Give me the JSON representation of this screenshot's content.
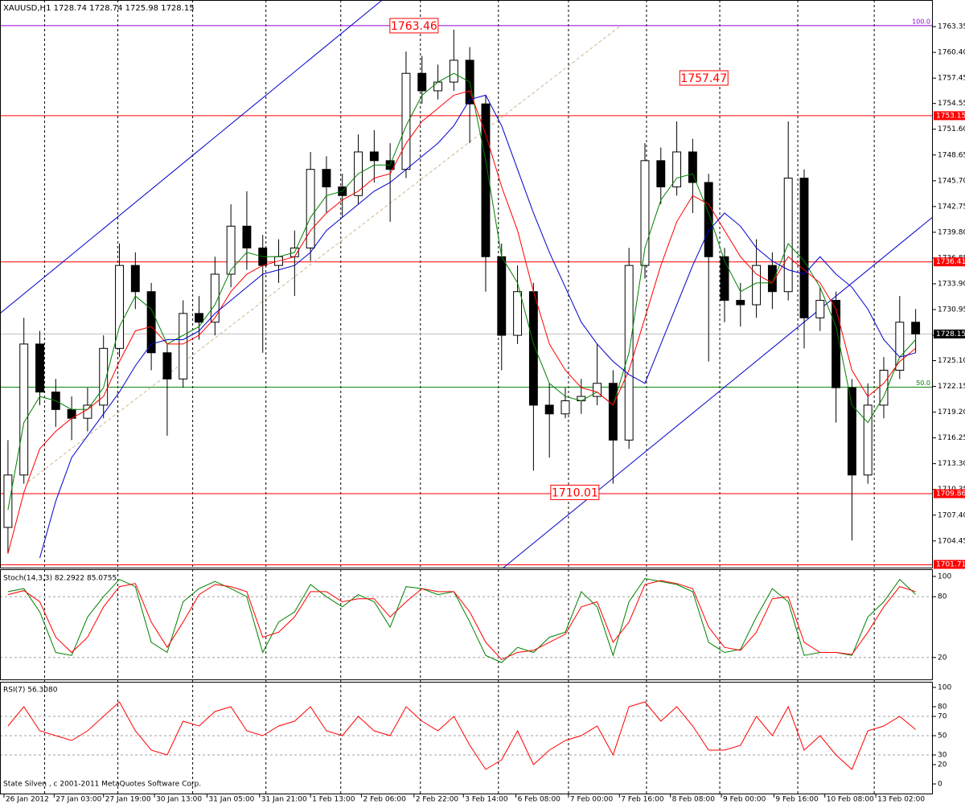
{
  "chart_data": [
    {
      "type": "candlestick",
      "title": "XAUUSD,H1  1728.74 1728.74 1725.98 1728.15",
      "footer": "State Silven , c 2001-2011 MetaQuotes Software Corp.",
      "open": [
        1706,
        1712,
        1727,
        1721.5,
        1719.5,
        1718.5,
        1720,
        1726.5,
        1736,
        1733,
        1726,
        1723,
        1730.5,
        1729.5,
        1735,
        1740.5,
        1738,
        1736,
        1737,
        1738,
        1747,
        1745,
        1744,
        1749,
        1748,
        1747,
        1758,
        1756,
        1757,
        1759.5,
        1754.5,
        1737,
        1728,
        1733,
        1720,
        1719,
        1720.5,
        1721,
        1722.5,
        1716,
        1736,
        1748,
        1745,
        1749,
        1745.5,
        1737,
        1732,
        1731.5,
        1736,
        1733,
        1746,
        1730,
        1732,
        1722,
        1712,
        1720,
        1724,
        1729.5
      ],
      "high": [
        1716,
        1730,
        1728.5,
        1723,
        1721,
        1722,
        1728,
        1738.5,
        1737.5,
        1734,
        1727,
        1732,
        1732.5,
        1737,
        1743,
        1744.5,
        1739.5,
        1739,
        1740,
        1749,
        1748.5,
        1746.5,
        1751,
        1751.5,
        1750,
        1760.5,
        1760,
        1759,
        1763,
        1761,
        1755.5,
        1738.5,
        1736,
        1734,
        1722.5,
        1722,
        1723,
        1727,
        1724,
        1738,
        1750,
        1749.5,
        1752.5,
        1750.5,
        1746.5,
        1738,
        1734,
        1739,
        1737.5,
        1752.5,
        1747,
        1733.5,
        1733,
        1723,
        1722.5,
        1725.5,
        1732.5,
        1731
      ],
      "low": [
        1703,
        1711,
        1720,
        1717.5,
        1716,
        1717,
        1718.5,
        1725.5,
        1731,
        1724,
        1716.5,
        1722,
        1727.5,
        1728,
        1733.5,
        1735.5,
        1726,
        1734,
        1732.5,
        1736.5,
        1742,
        1741.5,
        1743,
        1745.5,
        1741,
        1746,
        1754.5,
        1755,
        1756,
        1750,
        1733,
        1724,
        1727,
        1712.5,
        1714,
        1718.5,
        1719,
        1720,
        1711,
        1715,
        1734.5,
        1743,
        1744,
        1742,
        1725,
        1729.5,
        1729,
        1730,
        1731,
        1732,
        1726.5,
        1728.5,
        1718,
        1704.5,
        1711,
        1718.5,
        1723,
        1726
      ],
      "close": [
        1712,
        1727,
        1721.5,
        1719.5,
        1718.5,
        1720,
        1726.5,
        1736,
        1733,
        1726,
        1723,
        1730.5,
        1729.5,
        1735,
        1740.5,
        1738,
        1736,
        1737,
        1738,
        1747,
        1745,
        1744,
        1749,
        1748,
        1747,
        1758,
        1756,
        1757,
        1759.5,
        1754.5,
        1737,
        1728,
        1733,
        1720,
        1719,
        1720.5,
        1721,
        1722.5,
        1716,
        1736,
        1748,
        1745,
        1749,
        1745.5,
        1737,
        1732,
        1731.5,
        1736,
        1733,
        1746,
        1730,
        1732,
        1722,
        1712,
        1720,
        1724,
        1729.5,
        1728.15
      ],
      "series": [
        {
          "color": "#008000",
          "values": [
            1708,
            1718,
            1721,
            1720.5,
            1719.5,
            1719.5,
            1722,
            1729,
            1732.5,
            1731,
            1727,
            1728,
            1729,
            1731.5,
            1735.5,
            1737.5,
            1737,
            1737,
            1737.5,
            1741.5,
            1744,
            1744.5,
            1746.5,
            1747.5,
            1747.5,
            1752,
            1755.5,
            1757,
            1758,
            1757,
            1748,
            1737,
            1734,
            1727,
            1722.5,
            1721,
            1720.5,
            1721.5,
            1720,
            1726,
            1738,
            1743.5,
            1746,
            1746.5,
            1742,
            1736.5,
            1733,
            1734,
            1734,
            1738.5,
            1736.5,
            1733.5,
            1729,
            1720,
            1718,
            1721,
            1725.5,
            1727.5
          ]
        },
        {
          "color": "#ff0000",
          "values": [
            1703,
            1710,
            1715,
            1717,
            1718.5,
            1719.5,
            1721,
            1725,
            1728.5,
            1729,
            1727,
            1727,
            1728,
            1730,
            1733,
            1735,
            1736,
            1736.5,
            1737,
            1740,
            1742,
            1743.5,
            1744.5,
            1746,
            1746.5,
            1750,
            1752.5,
            1754,
            1755.5,
            1756,
            1751,
            1745,
            1740,
            1733,
            1727,
            1724,
            1722,
            1721.5,
            1720,
            1724,
            1730,
            1736,
            1741,
            1744,
            1743,
            1740,
            1737,
            1735,
            1734,
            1737,
            1735.5,
            1734,
            1731,
            1724,
            1721,
            1722.5,
            1725,
            1726.5
          ]
        },
        {
          "color": "#0000cd",
          "values": [
            null,
            null,
            1702.5,
            1709,
            1714,
            1716.5,
            1719,
            1721.5,
            1724.5,
            1727,
            1727.5,
            1727.5,
            1728.5,
            1730.5,
            1732,
            1733.5,
            1735,
            1735.5,
            1736,
            1737.5,
            1740,
            1741.5,
            1743,
            1744.5,
            1745.5,
            1747,
            1748.5,
            1750,
            1752,
            1755,
            1755.5,
            1752,
            1747,
            1742,
            1737.5,
            1733.5,
            1729.5,
            1727,
            1725,
            1723.5,
            1722.5,
            1727,
            1731.5,
            1736,
            1740,
            1742,
            1740.5,
            1738,
            1736.5,
            1735.5,
            1735,
            1737,
            1735,
            1733.5,
            1731,
            1727.5,
            1725.5,
            1726
          ]
        }
      ],
      "xlim": [
        -0.5,
        58.08
      ],
      "xticks": [
        {
          "value": -0.25,
          "label": "26 Jan 2012"
        },
        {
          "value": 2.9,
          "label": "27 Jan 03:00"
        },
        {
          "value": 6.0,
          "label": "27 Jan 19:00"
        },
        {
          "value": 9.2,
          "label": "30 Jan 13:00"
        },
        {
          "value": 12.5,
          "label": "31 Jan 05:00"
        },
        {
          "value": 15.8,
          "label": "31 Jan 21:00"
        },
        {
          "value": 19.0,
          "label": "1 Feb 13:00"
        },
        {
          "value": 22.2,
          "label": "2 Feb 06:00"
        },
        {
          "value": 25.5,
          "label": "2 Feb 22:00"
        },
        {
          "value": 28.6,
          "label": "3 Feb 14:00"
        },
        {
          "value": 31.9,
          "label": "6 Feb 08:00"
        },
        {
          "value": 35.2,
          "label": "7 Feb 00:00"
        },
        {
          "value": 38.4,
          "label": "7 Feb 16:00"
        },
        {
          "value": 41.6,
          "label": "8 Feb 08:00"
        },
        {
          "value": 44.8,
          "label": "9 Feb 00:00"
        },
        {
          "value": 48.1,
          "label": "9 Feb 16:00"
        },
        {
          "value": 51.3,
          "label": "10 Feb 08:00"
        },
        {
          "value": 54.5,
          "label": "13 Feb 02:00"
        }
      ],
      "separators": [
        2.3,
        6.9,
        11.6,
        16.2,
        20.9,
        25.9,
        30.8,
        35.2,
        40.1,
        44.7,
        49.6,
        54.4
      ],
      "ylim": [
        1701.3,
        1766.4
      ],
      "yticks": [
        1763.35,
        {
          "value": 1760.4,
          "label": "1760.40"
        },
        1757.45,
        1754.55,
        {
          "value": 1751.6,
          "label": "1751.60"
        },
        1748.65,
        {
          "value": 1745.7,
          "label": "1745.70"
        },
        1742.75,
        {
          "value": 1739.8,
          "label": "1739.80"
        },
        1736.85,
        {
          "value": 1733.9,
          "label": "1733.90"
        },
        1730.95,
        {
          "value": 1728,
          "label": "1728.00"
        },
        {
          "value": 1725.1,
          "label": "1725.10"
        },
        1722.15,
        {
          "value": 1719.2,
          "label": "1719.20"
        },
        1716.25,
        {
          "value": 1713.3,
          "label": "1713.30"
        },
        1710.35,
        {
          "value": 1707.4,
          "label": "1707.40"
        },
        1704.45
      ],
      "levels": [
        {
          "value": 1763.46,
          "color": "#9400d3",
          "label": "100.0"
        },
        {
          "value": 1753.15,
          "color": "#ff0000"
        },
        {
          "value": 1736.41,
          "color": "#ff0000"
        },
        {
          "value": 1722.05,
          "color": "#008000",
          "label": "50.0"
        },
        {
          "value": 1709.86,
          "color": "#ff0000"
        },
        {
          "value": 1701.71,
          "color": "#ff0000"
        }
      ],
      "current_price": 1728.15,
      "trendlines": [
        {
          "color": "#0000cd",
          "points": [
            [
              -0.5,
              1730.5
            ],
            [
              23.5,
              1766.4
            ]
          ]
        },
        {
          "color": "#0000cd",
          "points": [
            [
              31.06,
              1701.3
            ],
            [
              58.08,
              1741.55
            ]
          ]
        },
        {
          "color": "#d2b48c",
          "points": [
            [
              1.26,
              1711.2
            ],
            [
              38.4,
              1763.35
            ]
          ]
        }
      ],
      "price_labels": [
        {
          "value": 1763.46,
          "x": 25.5
        },
        {
          "value": 1757.47,
          "x": 43.7
        },
        {
          "value": 1710.01,
          "x": 35.6
        }
      ]
    },
    {
      "type": "line",
      "title": "Stoch(14,3,3) 82.2922 85.0755",
      "series": [
        {
          "color": "#008000",
          "values": [
            85,
            88,
            65,
            25,
            22,
            60,
            80,
            97,
            90,
            35,
            25,
            75,
            88,
            95,
            88,
            80,
            25,
            55,
            65,
            92,
            80,
            70,
            82,
            75,
            50,
            90,
            88,
            82,
            85,
            55,
            22,
            15,
            30,
            25,
            40,
            45,
            85,
            70,
            22,
            75,
            98,
            95,
            92,
            85,
            35,
            25,
            28,
            60,
            88,
            75,
            22,
            25,
            25,
            22,
            60,
            75,
            97,
            82.2922
          ]
        },
        {
          "color": "#ff0000",
          "values": [
            82,
            86,
            75,
            40,
            25,
            40,
            70,
            90,
            93,
            55,
            30,
            55,
            82,
            92,
            90,
            85,
            40,
            45,
            60,
            85,
            85,
            75,
            78,
            78,
            60,
            75,
            88,
            85,
            85,
            65,
            35,
            18,
            25,
            27,
            35,
            43,
            70,
            75,
            35,
            55,
            92,
            96,
            93,
            88,
            50,
            30,
            27,
            45,
            78,
            80,
            35,
            25,
            25,
            23,
            45,
            70,
            90,
            85.0755
          ]
        }
      ],
      "ylim": [
        -2.4,
        107.1
      ],
      "yticks": [
        100,
        80,
        20
      ],
      "levels": [
        80,
        20
      ]
    },
    {
      "type": "line",
      "title": "RSI(7) 56.3080",
      "series": [
        {
          "color": "#ff0000",
          "values": [
            60,
            80,
            55,
            50,
            45,
            55,
            70,
            85,
            55,
            35,
            30,
            65,
            60,
            75,
            80,
            55,
            50,
            60,
            65,
            80,
            55,
            50,
            70,
            55,
            50,
            80,
            65,
            55,
            70,
            40,
            15,
            25,
            55,
            20,
            35,
            45,
            50,
            60,
            30,
            80,
            85,
            65,
            80,
            60,
            35,
            35,
            40,
            70,
            50,
            80,
            35,
            50,
            30,
            15,
            55,
            60,
            70,
            56.308
          ]
        }
      ],
      "ylim": [
        -10.8,
        105.8
      ],
      "yticks": [
        100,
        80,
        70,
        50,
        30,
        20,
        0
      ],
      "levels": [
        70,
        50,
        30
      ]
    }
  ]
}
